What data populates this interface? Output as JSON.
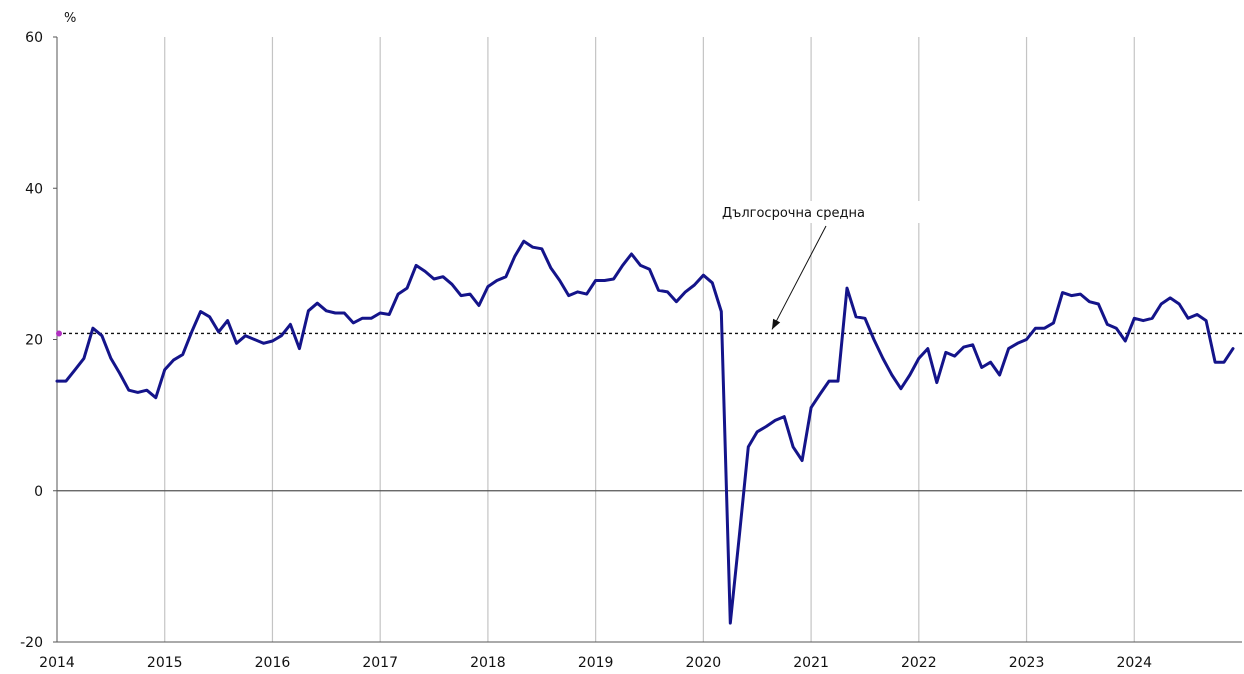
{
  "chart_data": {
    "type": "line",
    "ylabel": "%",
    "ylim": [
      -20,
      60
    ],
    "yticks": [
      -20,
      0,
      20,
      40,
      60
    ],
    "xlim": [
      2014,
      2025
    ],
    "xticks": [
      "2014",
      "2015",
      "2016",
      "2017",
      "2018",
      "2019",
      "2020",
      "2021",
      "2022",
      "2023",
      "2024"
    ],
    "grid": "vertical",
    "long_term_average": {
      "label": "Дългосрочна средна",
      "value": 20.8
    },
    "series": [
      {
        "color": "#14148a",
        "x": [
          "2014-01",
          "2014-02",
          "2014-03",
          "2014-04",
          "2014-05",
          "2014-06",
          "2014-07",
          "2014-08",
          "2014-09",
          "2014-10",
          "2014-11",
          "2014-12",
          "2015-01",
          "2015-02",
          "2015-03",
          "2015-04",
          "2015-05",
          "2015-06",
          "2015-07",
          "2015-08",
          "2015-09",
          "2015-10",
          "2015-11",
          "2015-12",
          "2016-01",
          "2016-02",
          "2016-03",
          "2016-04",
          "2016-05",
          "2016-06",
          "2016-07",
          "2016-08",
          "2016-09",
          "2016-10",
          "2016-11",
          "2016-12",
          "2017-01",
          "2017-02",
          "2017-03",
          "2017-04",
          "2017-05",
          "2017-06",
          "2017-07",
          "2017-08",
          "2017-09",
          "2017-10",
          "2017-11",
          "2017-12",
          "2018-01",
          "2018-02",
          "2018-03",
          "2018-04",
          "2018-05",
          "2018-06",
          "2018-07",
          "2018-08",
          "2018-09",
          "2018-10",
          "2018-11",
          "2018-12",
          "2019-01",
          "2019-02",
          "2019-03",
          "2019-04",
          "2019-05",
          "2019-06",
          "2019-07",
          "2019-08",
          "2019-09",
          "2019-10",
          "2019-11",
          "2019-12",
          "2020-01",
          "2020-02",
          "2020-03",
          "2020-04",
          "2020-05",
          "2020-06",
          "2020-07",
          "2020-08",
          "2020-09",
          "2020-10",
          "2020-11",
          "2020-12",
          "2021-01",
          "2021-02",
          "2021-03",
          "2021-04",
          "2021-05",
          "2021-06",
          "2021-07",
          "2021-08",
          "2021-09",
          "2021-10",
          "2021-11",
          "2021-12",
          "2022-01",
          "2022-02",
          "2022-03",
          "2022-04",
          "2022-05",
          "2022-06",
          "2022-07",
          "2022-08",
          "2022-09",
          "2022-10",
          "2022-11",
          "2022-12",
          "2023-01",
          "2023-02",
          "2023-03",
          "2023-04",
          "2023-05",
          "2023-06",
          "2023-07",
          "2023-08",
          "2023-09",
          "2023-10",
          "2023-11",
          "2023-12",
          "2024-01",
          "2024-02",
          "2024-03",
          "2024-04",
          "2024-05",
          "2024-06",
          "2024-07",
          "2024-08",
          "2024-09",
          "2024-10",
          "2024-11",
          "2024-12"
        ],
        "values": [
          14.5,
          14.5,
          16.0,
          17.5,
          21.5,
          20.5,
          17.5,
          15.5,
          13.3,
          13.0,
          13.3,
          12.3,
          16.0,
          17.3,
          18.0,
          21.0,
          23.7,
          23.0,
          21.0,
          22.5,
          19.5,
          20.5,
          20.0,
          19.5,
          19.8,
          20.5,
          22.0,
          18.8,
          23.8,
          24.8,
          23.8,
          23.5,
          23.5,
          22.2,
          22.8,
          22.8,
          23.5,
          23.3,
          26.0,
          26.8,
          29.8,
          29.0,
          28.0,
          28.3,
          27.3,
          25.8,
          26.0,
          24.5,
          27.0,
          27.8,
          28.3,
          31.0,
          33.0,
          32.2,
          32.0,
          29.5,
          27.8,
          25.8,
          26.3,
          26.0,
          27.8,
          27.8,
          28.0,
          29.8,
          31.3,
          29.8,
          29.3,
          26.5,
          26.3,
          25.0,
          26.3,
          27.2,
          28.5,
          27.5,
          23.7,
          -17.5,
          -6.0,
          5.8,
          7.8,
          8.5,
          9.3,
          9.8,
          5.8,
          4.0,
          11.0,
          12.8,
          14.5,
          14.5,
          26.8,
          23.0,
          22.8,
          20.0,
          17.5,
          15.3,
          13.5,
          15.3,
          17.5,
          18.8,
          14.3,
          18.3,
          17.8,
          19.0,
          19.3,
          16.3,
          17.0,
          15.3,
          18.8,
          19.5,
          20.0,
          21.5,
          21.5,
          22.2,
          26.2,
          25.8,
          26.0,
          25.0,
          24.7,
          22.0,
          21.5,
          19.8,
          22.8,
          22.5,
          22.8,
          24.7,
          25.5,
          24.7,
          22.8,
          23.3,
          22.5,
          17.0,
          17.0,
          18.8
        ]
      }
    ]
  }
}
